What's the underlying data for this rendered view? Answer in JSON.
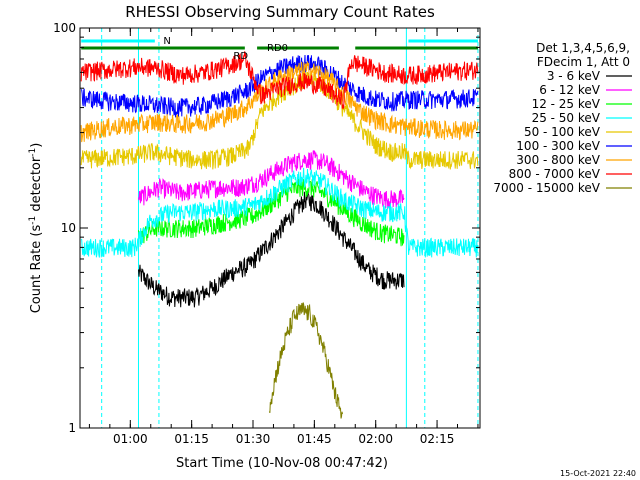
{
  "chart_data": {
    "type": "line",
    "title": "RHESSI Observing Summary Count Rates",
    "xlabel": "Start Time (10-Nov-08 00:47:42)",
    "ylabel": "Count Rate (s⁻¹ detector⁻¹)",
    "ylabel_main": "Count Rate (s",
    "ylabel_sup1": "-1",
    "ylabel_mid": " detector",
    "ylabel_sup2": "-1",
    "ylabel_end": ")",
    "y_scale": "log",
    "ylim": [
      1,
      100
    ],
    "y_ticks": [
      "1",
      "10",
      "100"
    ],
    "xlim_minutes": [
      47.7,
      145.5
    ],
    "x_ticks": [
      {
        "label": "01:00",
        "minutes": 60
      },
      {
        "label": "01:15",
        "minutes": 75
      },
      {
        "label": "01:30",
        "minutes": 90
      },
      {
        "label": "01:45",
        "minutes": 105
      },
      {
        "label": "02:00",
        "minutes": 120
      },
      {
        "label": "02:15",
        "minutes": 135
      }
    ],
    "grid": false,
    "legend_header": [
      "Det 1,3,4,5,6,9,",
      "FDecim 1, Att 0"
    ],
    "legend_position": "right",
    "footer": "15-Oct-2021 22:40",
    "flags": [
      {
        "label": "N",
        "color": "#00ffff",
        "segments": [
          [
            48,
            66
          ],
          [
            128,
            145
          ]
        ]
      },
      {
        "label": "RD0",
        "color": "#008000",
        "segments": [
          [
            48,
            88
          ],
          [
            91,
            111
          ],
          [
            115,
            145
          ]
        ]
      },
      {
        "label": "RD",
        "color": "#008000",
        "segments": []
      }
    ],
    "night_lines_minutes": {
      "solid": [
        62,
        127.5
      ],
      "dashed": [
        53,
        67,
        132,
        145
      ]
    },
    "series": [
      {
        "name": "3 - 6 keV",
        "color": "#000000",
        "values": [
          [
            62,
            6
          ],
          [
            66,
            5
          ],
          [
            70,
            4.5
          ],
          [
            76,
            4.5
          ],
          [
            80,
            5
          ],
          [
            85,
            6
          ],
          [
            89,
            6.5
          ],
          [
            93,
            8
          ],
          [
            97,
            10
          ],
          [
            100,
            12
          ],
          [
            103,
            14
          ],
          [
            106,
            13
          ],
          [
            109,
            11
          ],
          [
            112,
            9
          ],
          [
            115,
            7.5
          ],
          [
            118,
            6.2
          ],
          [
            122,
            5.5
          ],
          [
            127,
            5.5
          ]
        ]
      },
      {
        "name": "6 - 12 keV",
        "color": "#ff00ff",
        "values": [
          [
            62,
            14
          ],
          [
            67,
            16
          ],
          [
            72,
            15
          ],
          [
            77,
            15.5
          ],
          [
            82,
            16
          ],
          [
            87,
            16
          ],
          [
            91,
            17
          ],
          [
            95,
            19
          ],
          [
            99,
            21
          ],
          [
            102,
            22
          ],
          [
            105,
            22
          ],
          [
            108,
            21
          ],
          [
            111,
            19
          ],
          [
            114,
            17
          ],
          [
            118,
            15
          ],
          [
            122,
            14
          ],
          [
            127,
            14
          ]
        ]
      },
      {
        "name": "12 - 25 keV",
        "color": "#00ff00",
        "values": [
          [
            62,
            9
          ],
          [
            66,
            10
          ],
          [
            71,
            10
          ],
          [
            76,
            10
          ],
          [
            81,
            10.5
          ],
          [
            86,
            11
          ],
          [
            90,
            11.5
          ],
          [
            94,
            13
          ],
          [
            98,
            15
          ],
          [
            101,
            16
          ],
          [
            104,
            16
          ],
          [
            107,
            15
          ],
          [
            110,
            13.5
          ],
          [
            113,
            12
          ],
          [
            117,
            10.5
          ],
          [
            121,
            9.5
          ],
          [
            127,
            9
          ]
        ]
      },
      {
        "name": "25 - 50 keV",
        "color": "#00ffff",
        "values": [
          [
            48,
            8
          ],
          [
            61,
            8
          ],
          [
            65,
            11
          ],
          [
            70,
            12
          ],
          [
            75,
            12
          ],
          [
            80,
            12.5
          ],
          [
            85,
            12.5
          ],
          [
            90,
            13
          ],
          [
            94,
            14.5
          ],
          [
            98,
            16.5
          ],
          [
            101,
            18
          ],
          [
            104,
            18
          ],
          [
            107,
            17
          ],
          [
            110,
            15
          ],
          [
            113,
            13.5
          ],
          [
            117,
            12.5
          ],
          [
            121,
            12
          ],
          [
            127,
            12
          ],
          [
            128,
            8
          ],
          [
            145,
            8
          ]
        ]
      },
      {
        "name": "50 - 100 keV",
        "color": "#e6c800",
        "values": [
          [
            48,
            22
          ],
          [
            61,
            23
          ],
          [
            65,
            24
          ],
          [
            70,
            23
          ],
          [
            75,
            22
          ],
          [
            80,
            22
          ],
          [
            85,
            23
          ],
          [
            89,
            25
          ],
          [
            92,
            38
          ],
          [
            96,
            46
          ],
          [
            100,
            52
          ],
          [
            103,
            55
          ],
          [
            106,
            54
          ],
          [
            109,
            48
          ],
          [
            112,
            40
          ],
          [
            116,
            32
          ],
          [
            120,
            26
          ],
          [
            124,
            24
          ],
          [
            127,
            24
          ],
          [
            128,
            22
          ],
          [
            145,
            22
          ]
        ]
      },
      {
        "name": "100 - 300 keV",
        "color": "#0000ff",
        "values": [
          [
            48,
            45
          ],
          [
            55,
            43
          ],
          [
            62,
            42
          ],
          [
            67,
            41
          ],
          [
            72,
            40
          ],
          [
            78,
            41
          ],
          [
            83,
            44
          ],
          [
            88,
            48
          ],
          [
            92,
            56
          ],
          [
            96,
            62
          ],
          [
            100,
            66
          ],
          [
            103,
            67
          ],
          [
            106,
            65
          ],
          [
            109,
            60
          ],
          [
            112,
            53
          ],
          [
            116,
            47
          ],
          [
            120,
            44
          ],
          [
            124,
            43
          ],
          [
            128,
            44
          ],
          [
            136,
            44
          ],
          [
            145,
            45
          ]
        ]
      },
      {
        "name": "300 - 800 keV",
        "color": "#ffa500",
        "values": [
          [
            48,
            30
          ],
          [
            55,
            32
          ],
          [
            62,
            33
          ],
          [
            67,
            34
          ],
          [
            72,
            33
          ],
          [
            78,
            34
          ],
          [
            83,
            36
          ],
          [
            88,
            40
          ],
          [
            92,
            48
          ],
          [
            96,
            56
          ],
          [
            100,
            60
          ],
          [
            103,
            62
          ],
          [
            106,
            60
          ],
          [
            109,
            55
          ],
          [
            112,
            47
          ],
          [
            116,
            39
          ],
          [
            120,
            35
          ],
          [
            124,
            33
          ],
          [
            128,
            32
          ],
          [
            136,
            31
          ],
          [
            145,
            31
          ]
        ]
      },
      {
        "name": "800 - 7000 keV",
        "color": "#ff0000",
        "values": [
          [
            48,
            60
          ],
          [
            55,
            62
          ],
          [
            62,
            64
          ],
          [
            67,
            63
          ],
          [
            72,
            58
          ],
          [
            78,
            60
          ],
          [
            83,
            64
          ],
          [
            88,
            70
          ],
          [
            92,
            46
          ],
          [
            96,
            50
          ],
          [
            100,
            53
          ],
          [
            103,
            54
          ],
          [
            106,
            52
          ],
          [
            109,
            48
          ],
          [
            112,
            43
          ],
          [
            114,
            68
          ],
          [
            118,
            64
          ],
          [
            122,
            60
          ],
          [
            128,
            58
          ],
          [
            136,
            60
          ],
          [
            145,
            62
          ]
        ]
      },
      {
        "name": "7000 - 15000 keV",
        "color": "#808000",
        "values": [
          [
            94,
            1.3
          ],
          [
            96,
            2
          ],
          [
            98,
            2.8
          ],
          [
            100,
            3.6
          ],
          [
            102,
            3.9
          ],
          [
            104,
            3.7
          ],
          [
            106,
            3
          ],
          [
            108,
            2.2
          ],
          [
            110,
            1.5
          ],
          [
            112,
            1.1
          ]
        ]
      }
    ]
  }
}
